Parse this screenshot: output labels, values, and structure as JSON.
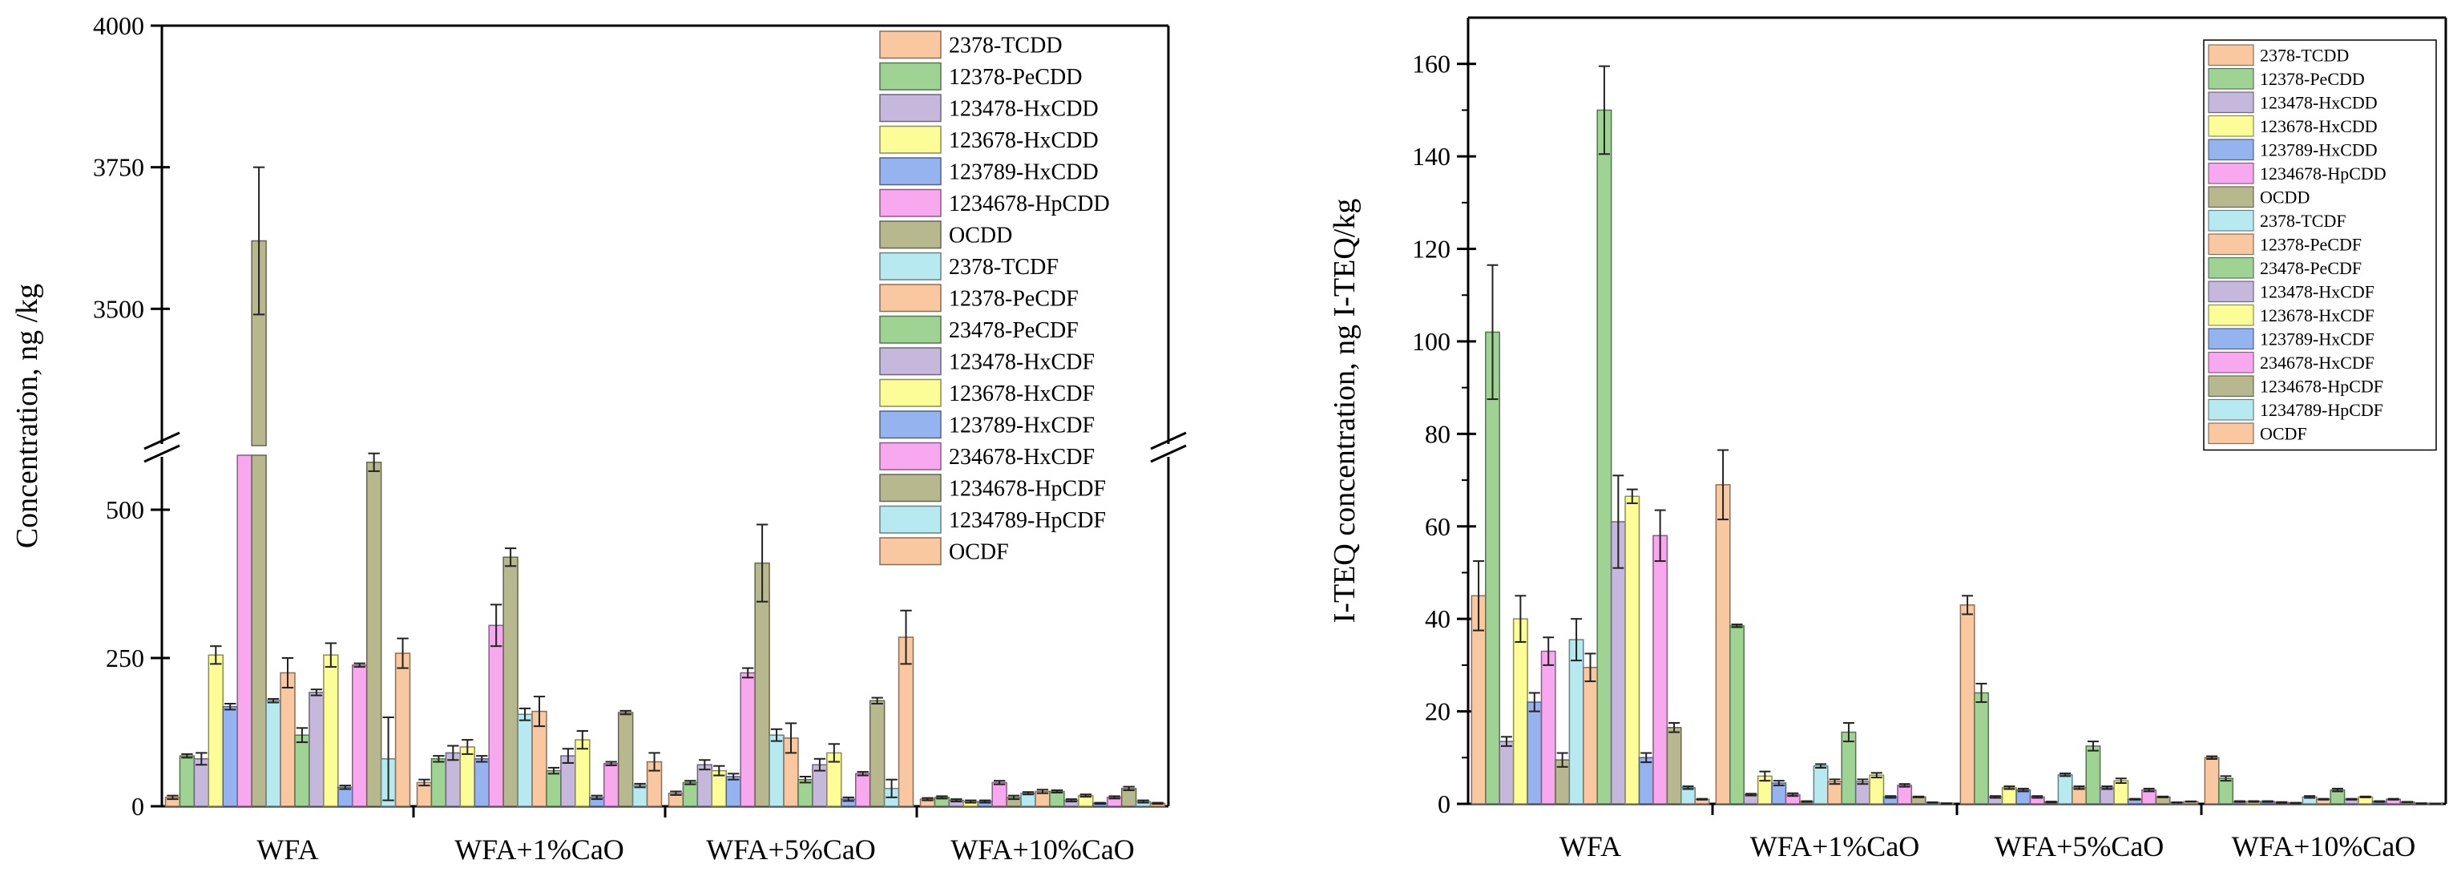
{
  "colors": {
    "2378-TCDD": "#f9c8a0",
    "12378-PeCDD": "#9ed394",
    "123478-HxCDD": "#c6b8dc",
    "123678-HxCDD": "#fdfd98",
    "123789-HxCDD": "#95b3ef",
    "1234678-HpCDD": "#f8a8ef",
    "OCDD": "#b8b88f",
    "2378-TCDF": "#b7eaf0",
    "12378-PeCDF": "#f9c8a0",
    "23478-PeCDF": "#9ed394",
    "123478-HxCDF": "#c6b8dc",
    "123678-HxCDF": "#fdfd98",
    "123789-HxCDF": "#95b3ef",
    "234678-HxCDF": "#f8a8ef",
    "1234678-HpCDF": "#b8b88f",
    "1234789-HpCDF": "#b7eaf0",
    "OCDF": "#f9c8a0"
  },
  "chart_data": [
    {
      "type": "bar",
      "title": "",
      "xlabel": "",
      "ylabel": "Concentration, ng /kg",
      "categories": [
        "WFA",
        "WFA+1%CaO",
        "WFA+5%CaO",
        "WFA+10%CaO"
      ],
      "axis_break": {
        "lower_range": [
          0,
          600
        ],
        "upper_range": [
          3250,
          4000
        ]
      },
      "yticks_lower": [
        "0",
        "250",
        "500"
      ],
      "yticks_upper": [
        "3500",
        "3750",
        "4000"
      ],
      "legend_position": "top-right",
      "series": [
        {
          "name": "2378-TCDD",
          "values": [
            15,
            40,
            22,
            12
          ],
          "errors": [
            3,
            5,
            3,
            2
          ]
        },
        {
          "name": "12378-PeCDD",
          "values": [
            85,
            80,
            40,
            15
          ],
          "errors": [
            3,
            5,
            3,
            2
          ]
        },
        {
          "name": "123478-HxCDD",
          "values": [
            80,
            90,
            70,
            10
          ],
          "errors": [
            10,
            12,
            8,
            2
          ]
        },
        {
          "name": "123678-HxCDD",
          "values": [
            255,
            100,
            60,
            8
          ],
          "errors": [
            15,
            12,
            8,
            2
          ]
        },
        {
          "name": "123789-HxCDD",
          "values": [
            168,
            80,
            50,
            8
          ],
          "errors": [
            5,
            5,
            5,
            2
          ]
        },
        {
          "name": "1234678-HpCDD",
          "values": [
            1800,
            305,
            225,
            40
          ],
          "errors": [
            0,
            35,
            8,
            3
          ]
        },
        {
          "name": "OCDD",
          "values": [
            3620,
            420,
            410,
            15
          ],
          "errors": [
            130,
            15,
            65,
            3
          ]
        },
        {
          "name": "2378-TCDF",
          "values": [
            178,
            155,
            120,
            22
          ],
          "errors": [
            3,
            10,
            10,
            2
          ]
        },
        {
          "name": "12378-PeCDF",
          "values": [
            225,
            160,
            115,
            25
          ],
          "errors": [
            25,
            25,
            25,
            3
          ]
        },
        {
          "name": "23478-PeCDF",
          "values": [
            120,
            60,
            45,
            25
          ],
          "errors": [
            12,
            5,
            5,
            2
          ]
        },
        {
          "name": "123478-HxCDF",
          "values": [
            192,
            85,
            70,
            10
          ],
          "errors": [
            5,
            12,
            10,
            2
          ]
        },
        {
          "name": "123678-HxCDF",
          "values": [
            255,
            112,
            90,
            18
          ],
          "errors": [
            20,
            15,
            15,
            2
          ]
        },
        {
          "name": "123789-HxCDF",
          "values": [
            32,
            15,
            12,
            5
          ],
          "errors": [
            3,
            3,
            3,
            1
          ]
        },
        {
          "name": "234678-HxCDF",
          "values": [
            238,
            72,
            55,
            15
          ],
          "errors": [
            3,
            3,
            3,
            2
          ]
        },
        {
          "name": "1234678-HpCDF",
          "values": [
            580,
            158,
            178,
            30
          ],
          "errors": [
            15,
            3,
            5,
            3
          ]
        },
        {
          "name": "1234789-HpCDF",
          "values": [
            80,
            35,
            30,
            8
          ],
          "errors": [
            70,
            3,
            15,
            2
          ]
        },
        {
          "name": "OCDF",
          "values": [
            258,
            75,
            285,
            5
          ],
          "errors": [
            25,
            15,
            45,
            1
          ]
        }
      ]
    },
    {
      "type": "bar",
      "title": "",
      "xlabel": "",
      "ylabel": "I-TEQ concentration, ng I-TEQ/kg",
      "categories": [
        "WFA",
        "WFA+1%CaO",
        "WFA+5%CaO",
        "WFA+10%CaO"
      ],
      "ylim": [
        0,
        170
      ],
      "yticks": [
        "0",
        "20",
        "40",
        "60",
        "80",
        "100",
        "120",
        "140",
        "160"
      ],
      "legend_position": "top-right",
      "series": [
        {
          "name": "2378-TCDD",
          "values": [
            45,
            69,
            43,
            10
          ],
          "errors": [
            7.5,
            7.5,
            2,
            0.3
          ]
        },
        {
          "name": "12378-PeCDD",
          "values": [
            102,
            38.5,
            24,
            5.5
          ],
          "errors": [
            14.5,
            0.3,
            2,
            0.5
          ]
        },
        {
          "name": "123478-HxCDD",
          "values": [
            13.5,
            2,
            1.5,
            0.5
          ],
          "errors": [
            1,
            0.2,
            0.2,
            0.1
          ]
        },
        {
          "name": "123678-HxCDD",
          "values": [
            40,
            6,
            3.5,
            0.5
          ],
          "errors": [
            5,
            1,
            0.3,
            0.1
          ]
        },
        {
          "name": "123789-HxCDD",
          "values": [
            22,
            4.5,
            3,
            0.5
          ],
          "errors": [
            2,
            0.5,
            0.3,
            0.1
          ]
        },
        {
          "name": "1234678-HpCDD",
          "values": [
            33,
            2,
            1.5,
            0.3
          ],
          "errors": [
            3,
            0.3,
            0.2,
            0.1
          ]
        },
        {
          "name": "OCDD",
          "values": [
            9.5,
            0.5,
            0.4,
            0.2
          ],
          "errors": [
            1.5,
            0.1,
            0.1,
            0.05
          ]
        },
        {
          "name": "2378-TCDF",
          "values": [
            35.5,
            8.2,
            6.3,
            1.5
          ],
          "errors": [
            4.5,
            0.4,
            0.3,
            0.2
          ]
        },
        {
          "name": "12378-PeCDF",
          "values": [
            29.5,
            4.8,
            3.5,
            1
          ],
          "errors": [
            3,
            0.5,
            0.3,
            0.1
          ]
        },
        {
          "name": "23478-PeCDF",
          "values": [
            150,
            15.5,
            12.5,
            3
          ],
          "errors": [
            9.5,
            2,
            1,
            0.3
          ]
        },
        {
          "name": "123478-HxCDF",
          "values": [
            61,
            4.8,
            3.5,
            1
          ],
          "errors": [
            10,
            0.5,
            0.3,
            0.1
          ]
        },
        {
          "name": "123678-HxCDF",
          "values": [
            66.5,
            6.2,
            5,
            1.5
          ],
          "errors": [
            1.5,
            0.5,
            0.5,
            0.1
          ]
        },
        {
          "name": "123789-HxCDF",
          "values": [
            10,
            1.5,
            1,
            0.5
          ],
          "errors": [
            1,
            0.2,
            0.1,
            0.1
          ]
        },
        {
          "name": "234678-HxCDF",
          "values": [
            58,
            4,
            3,
            1
          ],
          "errors": [
            5.5,
            0.3,
            0.3,
            0.1
          ]
        },
        {
          "name": "1234678-HpCDF",
          "values": [
            16.5,
            1.5,
            1.5,
            0.4
          ],
          "errors": [
            1,
            0.1,
            0.1,
            0.05
          ]
        },
        {
          "name": "1234789-HpCDF",
          "values": [
            3.5,
            0.3,
            0.3,
            0.1
          ],
          "errors": [
            0.3,
            0.05,
            0.05,
            0.05
          ]
        },
        {
          "name": "OCDF",
          "values": [
            1,
            0.1,
            0.5,
            0.05
          ],
          "errors": [
            0.1,
            0.05,
            0.05,
            0.02
          ]
        }
      ]
    }
  ]
}
